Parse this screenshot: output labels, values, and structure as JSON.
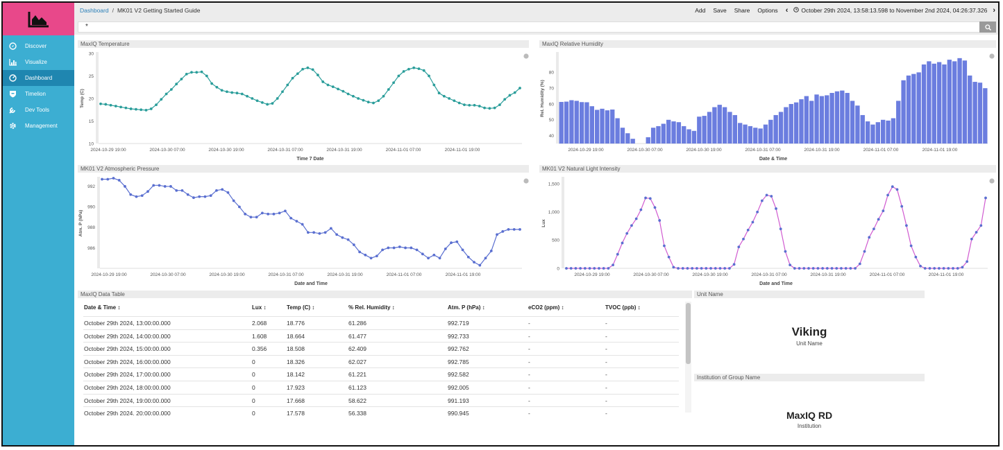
{
  "colors": {
    "sidebar": "#3caed2",
    "sidebar_active": "#1f86b0",
    "logo_bg": "#e8488a",
    "teal_line": "#2a9d9a",
    "blue_bar": "#6b7ddf",
    "pressure_line": "#5a6fd0",
    "lux_line": "#d05ad0",
    "lux_point": "#5a6fd0"
  },
  "sidebar": {
    "logo_icon": "area-chart-icon",
    "items": [
      {
        "label": "Discover",
        "icon": "compass-icon"
      },
      {
        "label": "Visualize",
        "icon": "bar-chart-icon"
      },
      {
        "label": "Dashboard",
        "icon": "dashboard-icon",
        "active": true
      },
      {
        "label": "Timelion",
        "icon": "shield-icon"
      },
      {
        "label": "Dev Tools",
        "icon": "wrench-icon"
      },
      {
        "label": "Management",
        "icon": "gear-icon"
      }
    ]
  },
  "breadcrumb": {
    "root": "Dashboard",
    "separator": "/",
    "current": "MK01 V2 Getting Started Guide"
  },
  "top_menu": {
    "add": "Add",
    "save": "Save",
    "share": "Share",
    "options": "Options",
    "time_range": "October 29th 2024, 13:58:13.598 to November 2nd 2024, 04:26:37.326"
  },
  "query": {
    "value": "*",
    "button_icon": "search-icon"
  },
  "panels": {
    "temperature": {
      "title": "MaxIQ Temperature",
      "chart_data": {
        "type": "line",
        "xlabel": "Time 7 Date",
        "ylabel": "Temp (C)",
        "ylim": [
          10,
          30
        ],
        "yticks": [
          10,
          15,
          20,
          25,
          30
        ],
        "xticks": [
          "2024-10-29 19:00",
          "2024-10-30 07:00",
          "2024-10-30 19:00",
          "2024-10-31 07:00",
          "2024-10-31 19:00",
          "2024-11-01 07:00",
          "2024-11-01 19:00"
        ],
        "values": [
          18.8,
          18.7,
          18.5,
          18.3,
          18.1,
          17.9,
          17.7,
          17.6,
          17.5,
          17.4,
          17.7,
          18.6,
          19.8,
          21.0,
          22.0,
          23.2,
          24.3,
          25.4,
          25.8,
          25.8,
          25.9,
          25.0,
          23.3,
          22.5,
          21.8,
          21.5,
          21.3,
          21.2,
          21.0,
          20.5,
          20.0,
          19.5,
          19.1,
          18.7,
          18.9,
          20.0,
          21.5,
          23.0,
          24.5,
          25.5,
          26.5,
          26.8,
          26.4,
          25.2,
          23.7,
          23.0,
          22.6,
          22.1,
          21.6,
          21.0,
          20.5,
          20.0,
          19.6,
          19.2,
          19.0,
          19.5,
          20.5,
          22.0,
          23.5,
          25.0,
          26.0,
          26.5,
          26.8,
          26.6,
          26.2,
          25.0,
          23.0,
          21.2,
          20.5,
          20.0,
          19.5,
          19.0,
          18.6,
          18.5,
          18.5,
          18.3,
          17.9,
          17.8,
          17.9,
          18.6,
          19.8,
          20.7,
          21.3,
          22.3
        ]
      }
    },
    "humidity": {
      "title": "MaxIQ Relative Humidity",
      "chart_data": {
        "type": "bar",
        "xlabel": "Date & Time",
        "ylabel": "Rel. Humidity (%)",
        "ylim": [
          35,
          92
        ],
        "yticks": [
          40,
          50,
          60,
          70,
          80
        ],
        "xticks": [
          "2024-10-29 19:00",
          "2024-10-30 07:00",
          "2024-10-30 19:00",
          "2024-10-31 07:00",
          "2024-10-31 19:00",
          "2024-11-01 07:00",
          "2024-11-01 19:00"
        ],
        "values": [
          61.3,
          61.5,
          62.4,
          62.0,
          61.2,
          61.1,
          58.6,
          56.3,
          57.0,
          56.0,
          56.5,
          51.0,
          45.0,
          41.5,
          38.0,
          33.0,
          32.0,
          39.0,
          45.0,
          46.0,
          47.5,
          50.0,
          49.0,
          48.5,
          46.0,
          44.0,
          43.0,
          52.0,
          52.5,
          55.0,
          58.0,
          59.5,
          58.0,
          55.0,
          53.0,
          48.0,
          47.0,
          46.0,
          45.0,
          44.5,
          47.0,
          50.0,
          53.0,
          55.0,
          58.0,
          60.0,
          61.0,
          63.0,
          65.0,
          62.0,
          66.0,
          65.0,
          65.5,
          67.0,
          68.0,
          68.5,
          67.0,
          62.0,
          59.0,
          53.0,
          49.0,
          47.0,
          48.5,
          50.0,
          49.5,
          51.0,
          62.0,
          75.0,
          78.0,
          79.0,
          80.0,
          85.0,
          87.0,
          85.5,
          86.5,
          85.0,
          88.0,
          87.0,
          89.0,
          87.5,
          78.0,
          74.0,
          73.5,
          70.0
        ]
      }
    },
    "pressure": {
      "title": "MK01 V2 Atmospheric Pressure",
      "chart_data": {
        "type": "line",
        "xlabel": "Date and Time",
        "ylabel": "Atm. P (hPa)",
        "ylim": [
          984,
          992.8
        ],
        "yticks": [
          986,
          988,
          990,
          992
        ],
        "xticks": [
          "2024-10-29 19:00",
          "2024-10-30 07:00",
          "2024-10-30 19:00",
          "2024-10-31 07:00",
          "2024-10-31 19:00",
          "2024-11-01 07:00",
          "2024-11-01 19:00"
        ],
        "values": [
          992.7,
          992.7,
          992.8,
          992.6,
          992.0,
          991.2,
          991.0,
          991.1,
          991.5,
          992.1,
          992.1,
          992.0,
          992.0,
          991.6,
          991.6,
          991.2,
          990.9,
          991.0,
          991.0,
          991.1,
          991.6,
          991.7,
          991.4,
          990.6,
          990.0,
          989.3,
          989.0,
          989.0,
          989.4,
          989.3,
          989.3,
          989.4,
          989.6,
          988.9,
          988.6,
          988.3,
          987.5,
          987.5,
          987.4,
          987.5,
          987.9,
          987.3,
          987.0,
          986.8,
          986.3,
          985.6,
          985.3,
          985.0,
          985.2,
          985.8,
          986.0,
          986.0,
          986.1,
          986.0,
          986.0,
          985.8,
          985.4,
          985.0,
          985.3,
          985.0,
          985.9,
          986.5,
          986.6,
          985.8,
          985.1,
          984.6,
          984.3,
          985.0,
          985.7,
          987.3,
          987.6,
          987.8,
          987.8,
          987.8
        ]
      }
    },
    "light": {
      "title": "MK01 V2 Natural Light Intensity",
      "chart_data": {
        "type": "line",
        "xlabel": "Date and Time",
        "ylabel": "Lux",
        "ylim": [
          0,
          1600
        ],
        "yticks": [
          "0",
          "500",
          "1,000",
          "1,500"
        ],
        "ytick_values": [
          0,
          500,
          1000,
          1500
        ],
        "xticks": [
          "2024-10-29 19:00",
          "2024-10-30 07:00",
          "2024-10-30 19:00",
          "2024-10-31 07:00",
          "2024-10-31 19:00",
          "2024-11-01 07:00",
          "2024-11-01 19:00"
        ],
        "values": [
          0,
          0,
          0,
          0,
          0,
          0,
          0,
          0,
          0,
          0,
          60,
          250,
          450,
          620,
          760,
          880,
          1040,
          1250,
          1240,
          1080,
          850,
          400,
          200,
          20,
          0,
          0,
          0,
          0,
          0,
          0,
          0,
          0,
          0,
          0,
          0,
          0,
          70,
          380,
          520,
          680,
          820,
          1000,
          1200,
          1300,
          1280,
          1060,
          700,
          300,
          60,
          0,
          0,
          0,
          0,
          0,
          0,
          0,
          0,
          0,
          0,
          0,
          0,
          0,
          0,
          80,
          300,
          550,
          700,
          870,
          1020,
          1300,
          1450,
          1400,
          1100,
          760,
          400,
          200,
          40,
          0,
          0,
          0,
          0,
          0,
          0,
          0,
          0,
          20,
          120,
          520,
          640,
          760,
          1250
        ]
      }
    },
    "data_table": {
      "title": "MaxIQ Data Table",
      "columns": [
        "Date & Time",
        "Lux",
        "Temp (C)",
        "% Rel. Humidity",
        "Atm. P (hPa)",
        "eCO2 (ppm)",
        "TVOC (ppb)"
      ],
      "rows": [
        [
          "October 29th 2024, 13:00:00.000",
          "2.068",
          "18.776",
          "61.286",
          "992.719",
          "-",
          "-"
        ],
        [
          "October 29th 2024, 14:00:00.000",
          "1.608",
          "18.664",
          "61.477",
          "992.733",
          "-",
          "-"
        ],
        [
          "October 29th 2024, 15:00:00.000",
          "0.356",
          "18.508",
          "62.409",
          "992.762",
          "-",
          "-"
        ],
        [
          "October 29th 2024, 16:00:00.000",
          "0",
          "18.326",
          "62.027",
          "992.785",
          "-",
          "-"
        ],
        [
          "October 29th 2024, 17:00:00.000",
          "0",
          "18.142",
          "61.221",
          "992.582",
          "-",
          "-"
        ],
        [
          "October 29th 2024, 18:00:00.000",
          "0",
          "17.923",
          "61.123",
          "992.005",
          "-",
          "-"
        ],
        [
          "October 29th 2024, 19:00:00.000",
          "0",
          "17.668",
          "58.622",
          "991.193",
          "-",
          "-"
        ],
        [
          "October 29th 2024, 20:00:00.000",
          "0",
          "17.578",
          "56.338",
          "990.945",
          "-",
          "-"
        ]
      ]
    },
    "unit_name": {
      "title": "Unit Name",
      "value": "Viking",
      "label": "Unit Name"
    },
    "institution": {
      "title": "Institution of Group Name",
      "value": "MaxIQ RD",
      "label": "Institution"
    }
  }
}
